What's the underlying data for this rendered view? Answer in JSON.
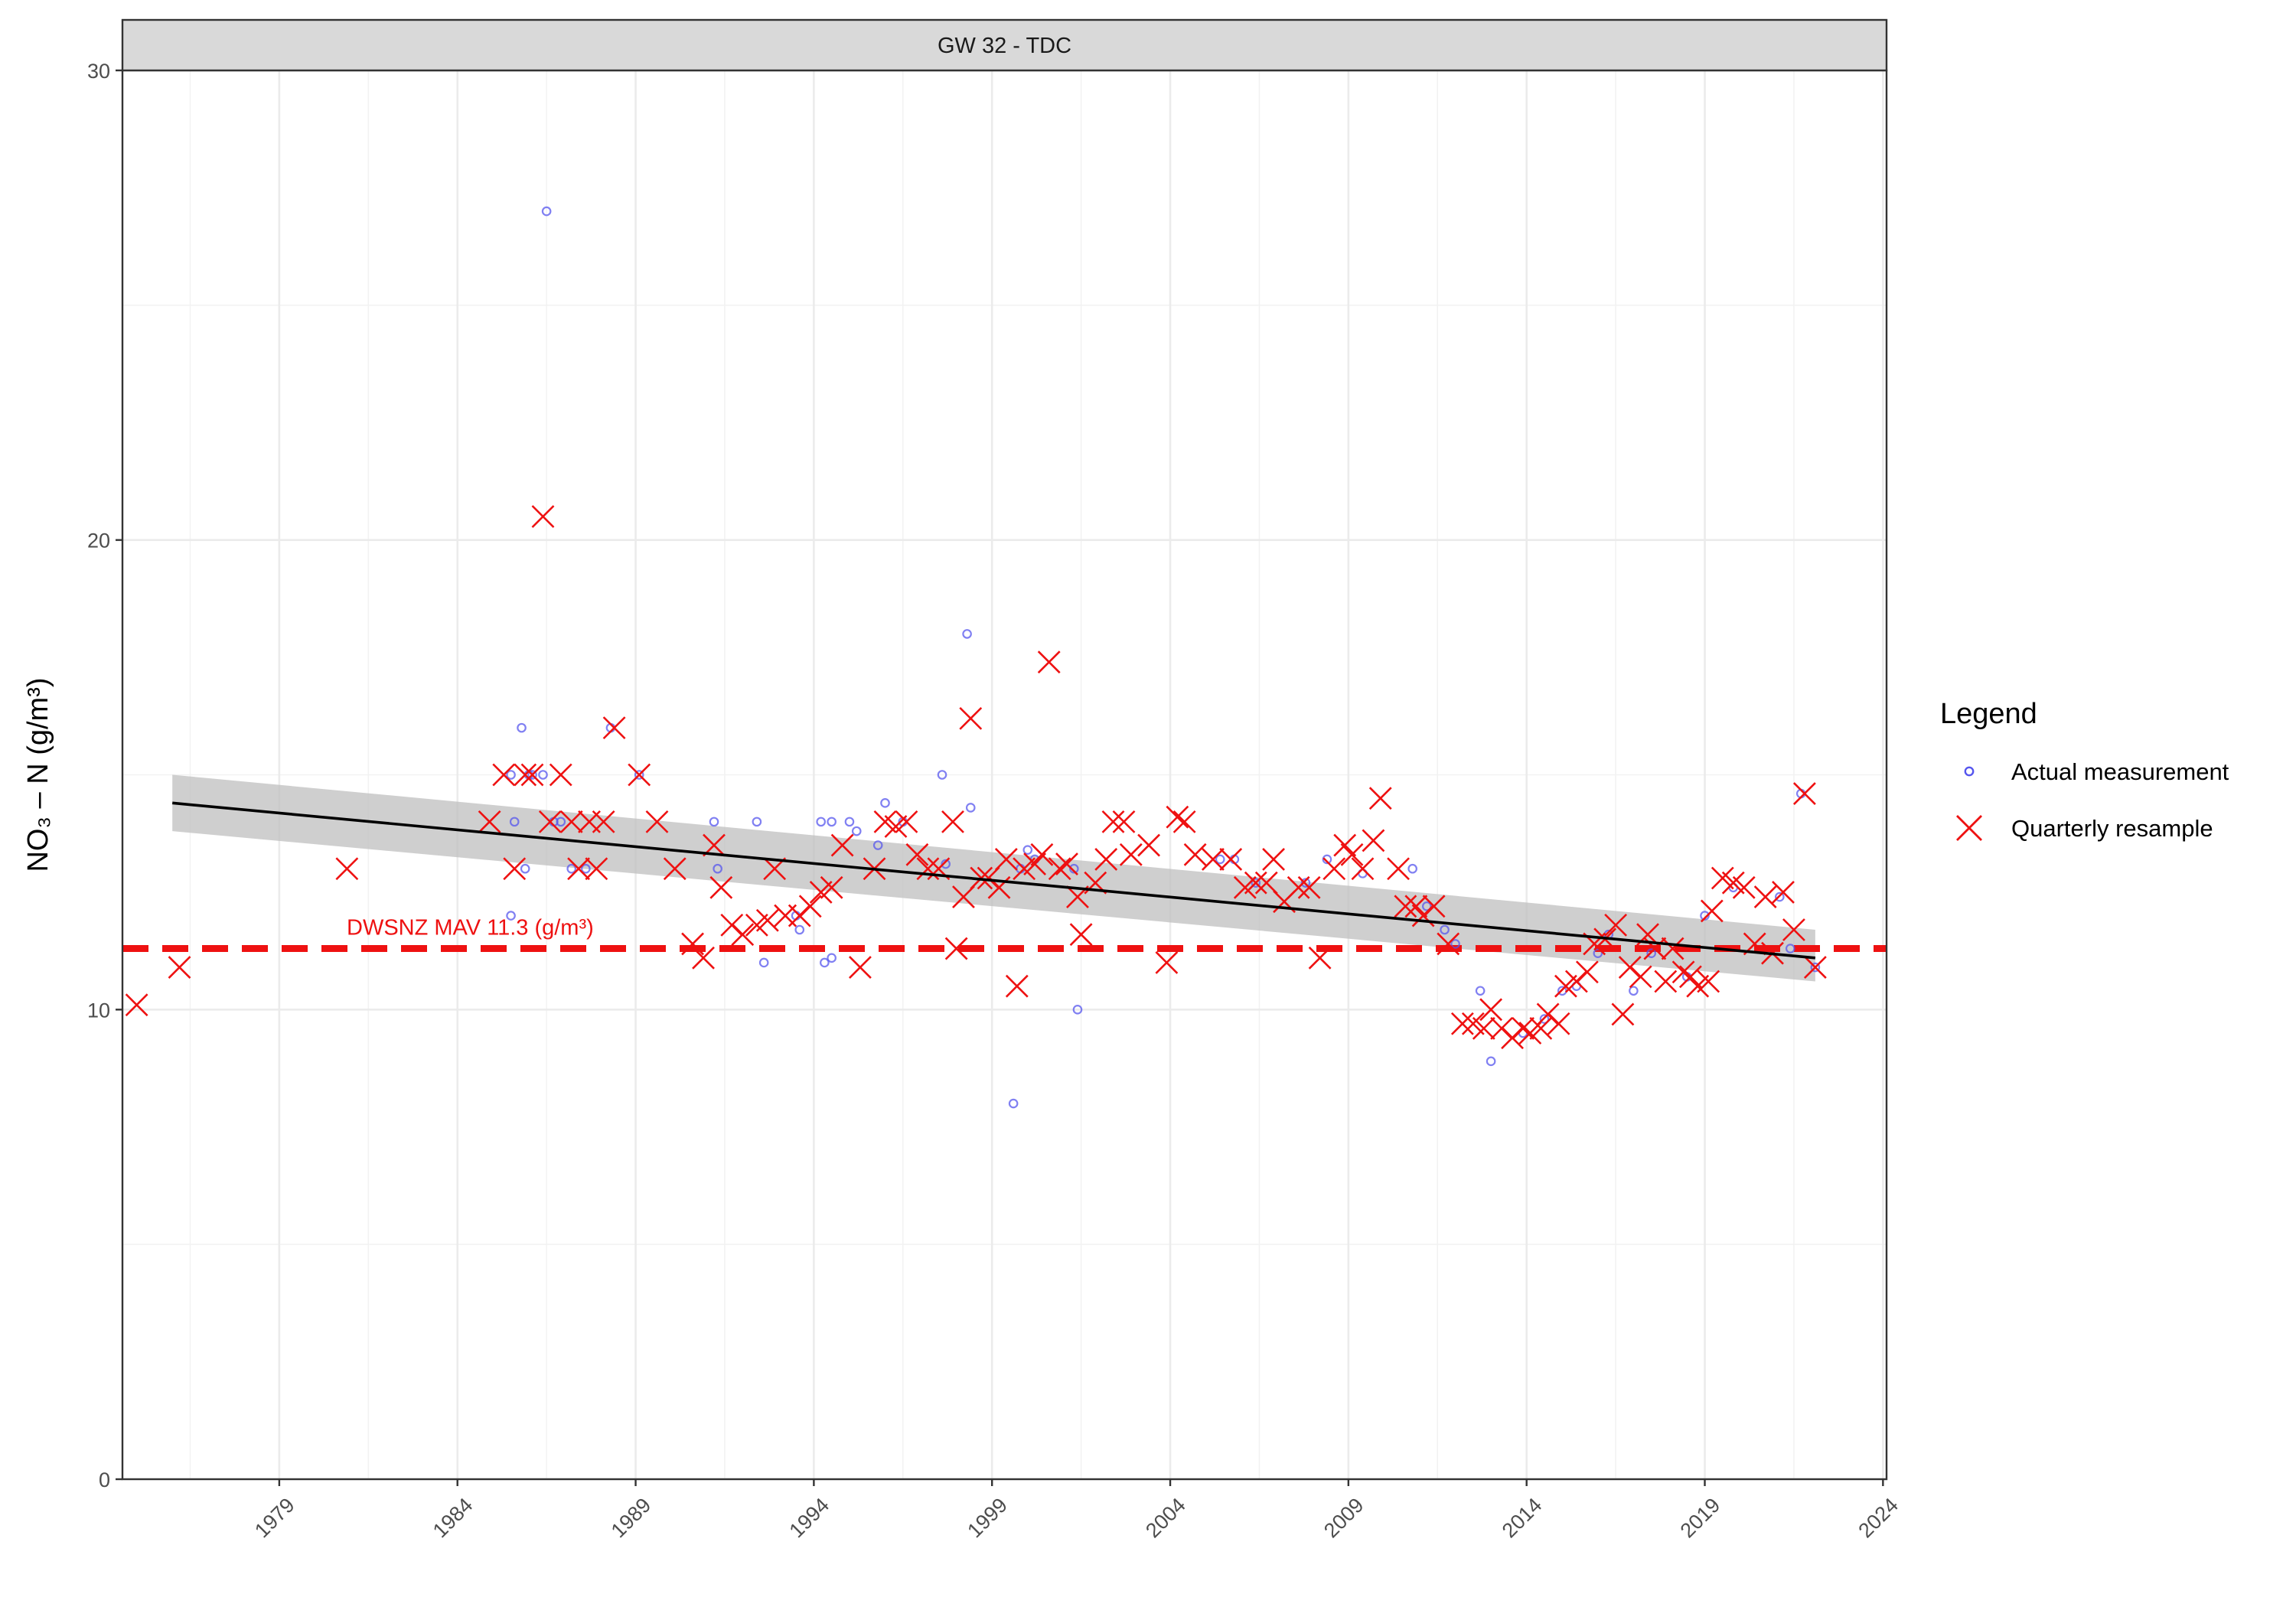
{
  "chart_data": {
    "type": "scatter",
    "panel_title": "GW 32 - TDC",
    "ylabel": "NO₃ – N (g/m³)",
    "xlabel": "",
    "ylim": [
      0,
      30
    ],
    "xlim": [
      1974.6,
      2024.1
    ],
    "y_ticks": [
      "0",
      "10",
      "20",
      "30"
    ],
    "x_ticks": [
      "1979",
      "1984",
      "1989",
      "1994",
      "1999",
      "2004",
      "2009",
      "2014",
      "2019",
      "2024"
    ],
    "grid": true,
    "legend": {
      "title": "Legend",
      "position": "right",
      "items": [
        {
          "label": "Actual measurement",
          "color": "#3333dd",
          "shape": "circle"
        },
        {
          "label": "Quarterly resample",
          "color": "#ee1111",
          "shape": "x"
        }
      ]
    },
    "reference_line": {
      "y": 11.3,
      "label": "DWSNZ MAV 11.3 (g/m³)",
      "color": "#ee1111"
    },
    "trend": {
      "x": [
        1976.0,
        2022.1
      ],
      "y": [
        14.4,
        11.1
      ],
      "ci_lower": [
        13.8,
        10.6
      ],
      "ci_upper": [
        15.0,
        11.7
      ],
      "color": "#000000",
      "band_color": "#bfbfbf"
    },
    "series": [
      {
        "name": "Actual measurement",
        "points": [
          [
            1985.5,
            12.0
          ],
          [
            1985.5,
            15.0
          ],
          [
            1985.6,
            14.0
          ],
          [
            1985.8,
            16.0
          ],
          [
            1985.9,
            13.0
          ],
          [
            1986.0,
            15.0
          ],
          [
            1986.1,
            15.0
          ],
          [
            1986.4,
            15.0
          ],
          [
            1986.5,
            27.0
          ],
          [
            1986.7,
            14.0
          ],
          [
            1986.9,
            14.0
          ],
          [
            1987.2,
            13.0
          ],
          [
            1987.6,
            13.0
          ],
          [
            1988.3,
            16.0
          ],
          [
            1989.1,
            15.0
          ],
          [
            1991.2,
            14.0
          ],
          [
            1991.3,
            13.0
          ],
          [
            1992.4,
            14.0
          ],
          [
            1992.6,
            11.0
          ],
          [
            1993.5,
            12.0
          ],
          [
            1993.6,
            11.7
          ],
          [
            1994.2,
            14.0
          ],
          [
            1994.3,
            11.0
          ],
          [
            1994.5,
            14.0
          ],
          [
            1994.5,
            11.1
          ],
          [
            1995.0,
            14.0
          ],
          [
            1995.2,
            13.8
          ],
          [
            1995.8,
            13.5
          ],
          [
            1996.0,
            14.4
          ],
          [
            1996.5,
            14.0
          ],
          [
            1997.6,
            15.0
          ],
          [
            1997.7,
            13.1
          ],
          [
            1998.3,
            18.0
          ],
          [
            1998.4,
            14.3
          ],
          [
            1999.6,
            8.0
          ],
          [
            1999.8,
            13.0
          ],
          [
            2000.0,
            13.4
          ],
          [
            2000.2,
            13.2
          ],
          [
            2001.3,
            13.0
          ],
          [
            2001.4,
            10.0
          ],
          [
            2005.4,
            13.2
          ],
          [
            2005.8,
            13.2
          ],
          [
            2006.4,
            12.7
          ],
          [
            2007.8,
            12.7
          ],
          [
            2008.4,
            13.2
          ],
          [
            2009.4,
            12.9
          ],
          [
            2010.8,
            13.0
          ],
          [
            2011.2,
            12.2
          ],
          [
            2011.7,
            11.7
          ],
          [
            2012.0,
            11.4
          ],
          [
            2012.7,
            10.4
          ],
          [
            2013.0,
            8.9
          ],
          [
            2013.9,
            9.5
          ],
          [
            2014.5,
            9.8
          ],
          [
            2015.0,
            10.4
          ],
          [
            2015.4,
            10.5
          ],
          [
            2016.0,
            11.2
          ],
          [
            2016.3,
            11.6
          ],
          [
            2017.0,
            10.4
          ],
          [
            2017.5,
            11.2
          ],
          [
            2018.5,
            10.7
          ],
          [
            2019.0,
            12.0
          ],
          [
            2019.8,
            12.6
          ],
          [
            2021.1,
            12.4
          ],
          [
            2021.4,
            11.3
          ],
          [
            2021.7,
            14.6
          ],
          [
            2022.1,
            10.9
          ]
        ]
      },
      {
        "name": "Quarterly resample",
        "points": [
          [
            1975.0,
            10.1
          ],
          [
            1976.2,
            10.9
          ],
          [
            1980.9,
            13.0
          ],
          [
            1984.9,
            14.0
          ],
          [
            1985.3,
            15.0
          ],
          [
            1985.6,
            13.0
          ],
          [
            1985.9,
            15.0
          ],
          [
            1986.1,
            15.0
          ],
          [
            1986.4,
            20.5
          ],
          [
            1986.6,
            14.0
          ],
          [
            1986.9,
            15.0
          ],
          [
            1987.2,
            14.0
          ],
          [
            1987.4,
            13.0
          ],
          [
            1987.7,
            14.0
          ],
          [
            1987.9,
            13.0
          ],
          [
            1988.1,
            14.0
          ],
          [
            1988.4,
            16.0
          ],
          [
            1989.1,
            15.0
          ],
          [
            1989.6,
            14.0
          ],
          [
            1990.1,
            13.0
          ],
          [
            1990.6,
            11.4
          ],
          [
            1990.9,
            11.1
          ],
          [
            1991.2,
            13.5
          ],
          [
            1991.4,
            12.6
          ],
          [
            1991.7,
            11.8
          ],
          [
            1992.0,
            11.6
          ],
          [
            1992.4,
            11.8
          ],
          [
            1992.7,
            11.9
          ],
          [
            1992.9,
            13.0
          ],
          [
            1993.2,
            12.0
          ],
          [
            1993.6,
            12.0
          ],
          [
            1993.9,
            12.2
          ],
          [
            1994.2,
            12.5
          ],
          [
            1994.5,
            12.6
          ],
          [
            1994.8,
            13.5
          ],
          [
            1995.3,
            10.9
          ],
          [
            1995.7,
            13.0
          ],
          [
            1996.0,
            14.0
          ],
          [
            1996.3,
            13.9
          ],
          [
            1996.6,
            14.0
          ],
          [
            1996.9,
            13.3
          ],
          [
            1997.2,
            13.0
          ],
          [
            1997.5,
            13.0
          ],
          [
            1997.9,
            14.0
          ],
          [
            1998.0,
            11.3
          ],
          [
            1998.2,
            12.4
          ],
          [
            1998.4,
            16.2
          ],
          [
            1998.7,
            12.8
          ],
          [
            1998.9,
            12.8
          ],
          [
            1999.2,
            12.6
          ],
          [
            1999.4,
            13.2
          ],
          [
            1999.7,
            10.5
          ],
          [
            1999.9,
            13.0
          ],
          [
            2000.2,
            13.1
          ],
          [
            2000.4,
            13.3
          ],
          [
            2000.6,
            17.4
          ],
          [
            2000.9,
            13.0
          ],
          [
            2001.1,
            13.1
          ],
          [
            2001.4,
            12.4
          ],
          [
            2001.5,
            11.6
          ],
          [
            2001.9,
            12.7
          ],
          [
            2002.2,
            13.2
          ],
          [
            2002.4,
            14.0
          ],
          [
            2002.7,
            14.0
          ],
          [
            2002.9,
            13.3
          ],
          [
            2003.4,
            13.5
          ],
          [
            2003.9,
            11.0
          ],
          [
            2004.2,
            14.1
          ],
          [
            2004.4,
            14.0
          ],
          [
            2004.7,
            13.3
          ],
          [
            2005.2,
            13.2
          ],
          [
            2005.7,
            13.2
          ],
          [
            2006.1,
            12.6
          ],
          [
            2006.4,
            12.7
          ],
          [
            2006.7,
            12.7
          ],
          [
            2006.9,
            13.2
          ],
          [
            2007.2,
            12.3
          ],
          [
            2007.6,
            12.6
          ],
          [
            2007.9,
            12.6
          ],
          [
            2008.2,
            11.1
          ],
          [
            2008.6,
            13.0
          ],
          [
            2008.9,
            13.5
          ],
          [
            2009.1,
            13.3
          ],
          [
            2009.4,
            13.0
          ],
          [
            2009.7,
            13.6
          ],
          [
            2009.9,
            14.5
          ],
          [
            2010.4,
            13.0
          ],
          [
            2010.6,
            12.2
          ],
          [
            2010.9,
            12.2
          ],
          [
            2011.1,
            12.0
          ],
          [
            2011.4,
            12.2
          ],
          [
            2011.8,
            11.4
          ],
          [
            2012.2,
            9.7
          ],
          [
            2012.5,
            9.7
          ],
          [
            2012.8,
            9.6
          ],
          [
            2013.0,
            10.0
          ],
          [
            2013.3,
            9.6
          ],
          [
            2013.6,
            9.4
          ],
          [
            2013.9,
            9.6
          ],
          [
            2014.1,
            9.5
          ],
          [
            2014.4,
            9.6
          ],
          [
            2014.6,
            9.9
          ],
          [
            2014.9,
            9.7
          ],
          [
            2015.1,
            10.5
          ],
          [
            2015.4,
            10.6
          ],
          [
            2015.7,
            10.8
          ],
          [
            2015.9,
            11.4
          ],
          [
            2016.2,
            11.5
          ],
          [
            2016.5,
            11.8
          ],
          [
            2016.7,
            9.9
          ],
          [
            2016.9,
            10.9
          ],
          [
            2017.2,
            10.7
          ],
          [
            2017.4,
            11.6
          ],
          [
            2017.6,
            11.3
          ],
          [
            2017.9,
            10.6
          ],
          [
            2018.1,
            11.3
          ],
          [
            2018.4,
            10.8
          ],
          [
            2018.6,
            10.7
          ],
          [
            2018.8,
            10.5
          ],
          [
            2019.1,
            10.6
          ],
          [
            2019.2,
            12.1
          ],
          [
            2019.5,
            12.8
          ],
          [
            2019.8,
            12.7
          ],
          [
            2020.1,
            12.6
          ],
          [
            2020.4,
            11.4
          ],
          [
            2020.7,
            12.4
          ],
          [
            2020.9,
            11.2
          ],
          [
            2021.2,
            12.5
          ],
          [
            2021.5,
            11.7
          ],
          [
            2021.8,
            14.6
          ],
          [
            2022.1,
            10.9
          ]
        ]
      }
    ]
  }
}
